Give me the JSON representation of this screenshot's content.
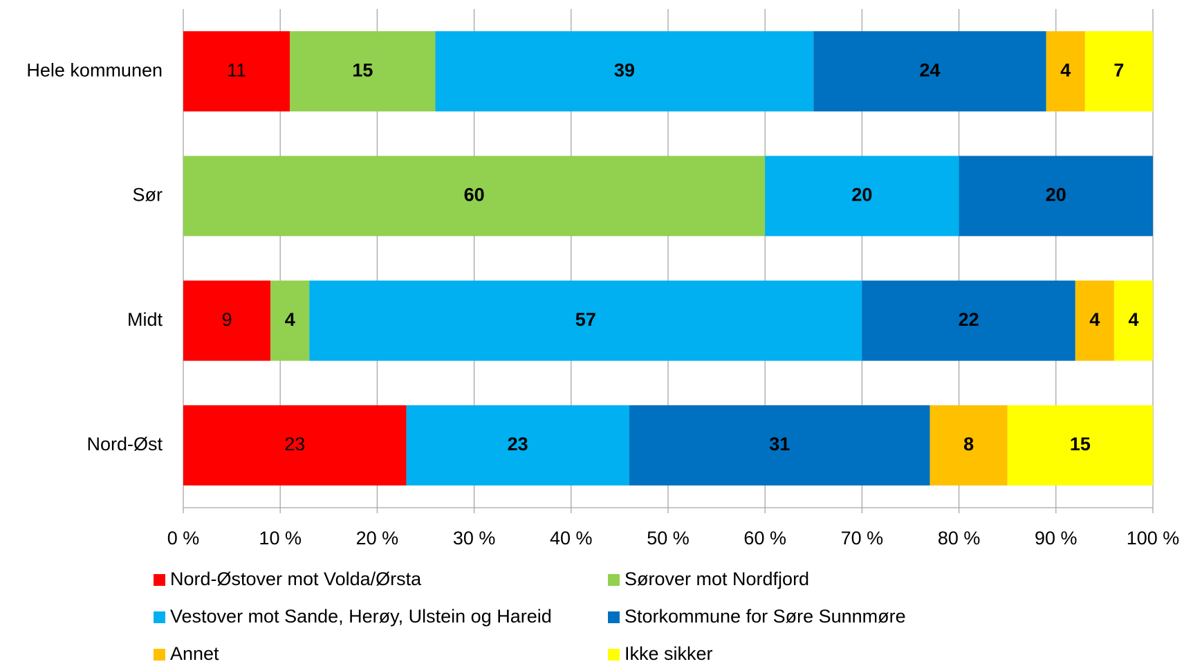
{
  "chart_data": {
    "type": "stacked_barh",
    "categories": [
      "Hele kommunen",
      "Sør",
      "Midt",
      "Nord-Øst"
    ],
    "series": [
      {
        "name": "Nord-Østover mot Volda/Ørsta",
        "color": "#ff0000",
        "values": [
          11,
          null,
          9,
          23
        ]
      },
      {
        "name": "Sørover mot Nordfjord",
        "color": "#92d050",
        "values": [
          15,
          60,
          4,
          null
        ]
      },
      {
        "name": "Vestover mot Sande, Herøy, Ulstein og Hareid",
        "color": "#00b0f0",
        "values": [
          39,
          20,
          57,
          23
        ]
      },
      {
        "name": "Storkommune for Søre Sunnmøre",
        "color": "#0070c0",
        "values": [
          24,
          20,
          22,
          31
        ]
      },
      {
        "name": "Annet",
        "color": "#ffc000",
        "values": [
          4,
          null,
          4,
          8
        ]
      },
      {
        "name": "Ikke sikker",
        "color": "#ffff00",
        "values": [
          7,
          null,
          4,
          15
        ]
      }
    ],
    "xlim": [
      0,
      100
    ],
    "xticks": [
      {
        "value": 0,
        "label": "0 %"
      },
      {
        "value": 10,
        "label": "10 %"
      },
      {
        "value": 20,
        "label": "20 %"
      },
      {
        "value": 30,
        "label": "30 %"
      },
      {
        "value": 40,
        "label": "40 %"
      },
      {
        "value": 50,
        "label": "50 %"
      },
      {
        "value": 60,
        "label": "60 %"
      },
      {
        "value": 70,
        "label": "70 %"
      },
      {
        "value": 80,
        "label": "80 %"
      },
      {
        "value": 90,
        "label": "90 %"
      },
      {
        "value": 100,
        "label": "100 %"
      }
    ],
    "grid": true,
    "legend": "bottom"
  }
}
